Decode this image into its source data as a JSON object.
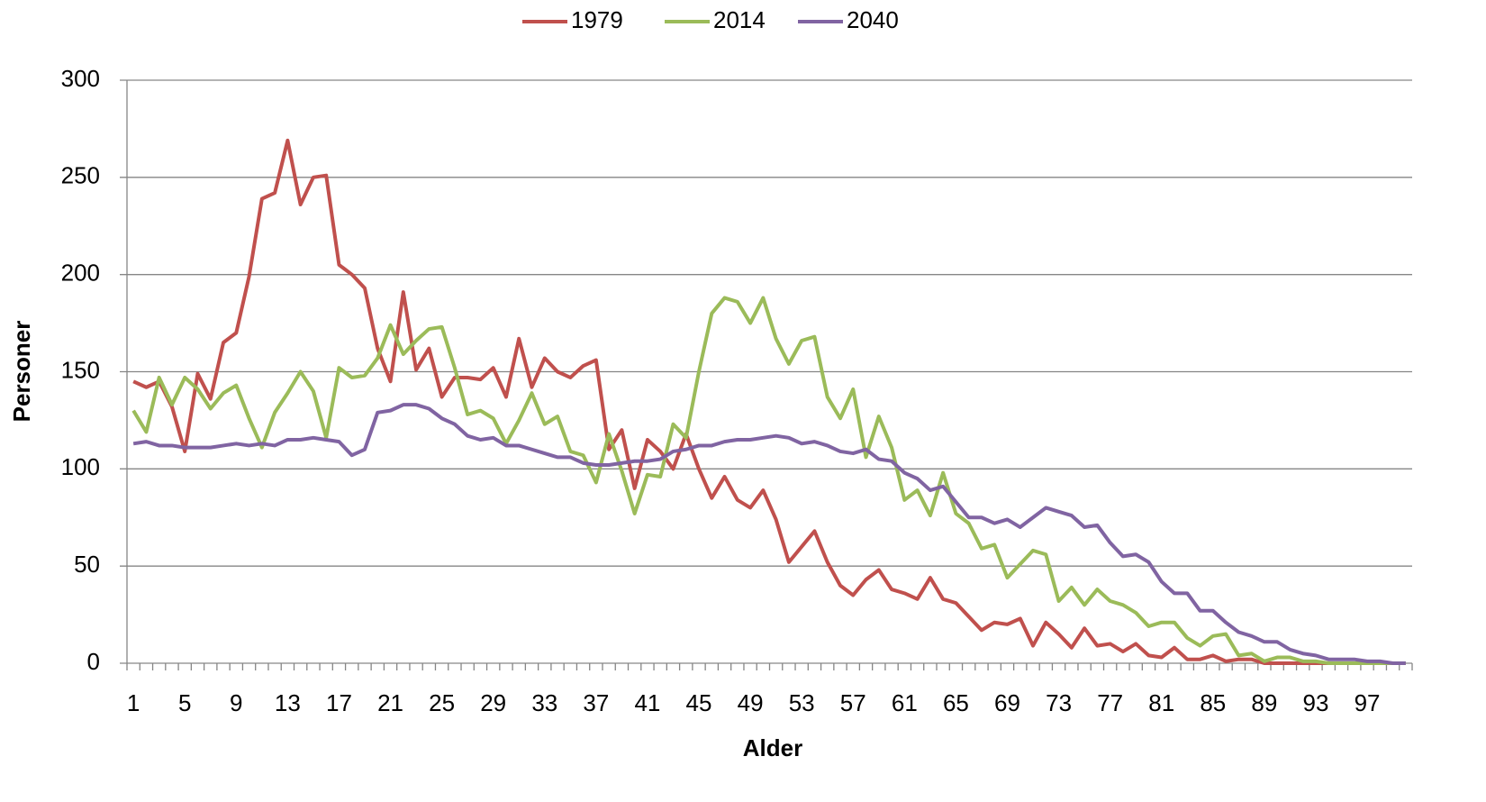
{
  "chart_data": {
    "type": "line",
    "x_label": "Alder",
    "y_label": "Personer",
    "categories": [
      1,
      null,
      null,
      null,
      5,
      null,
      null,
      null,
      9,
      null,
      null,
      null,
      13,
      null,
      null,
      null,
      17,
      null,
      null,
      null,
      21,
      null,
      null,
      null,
      25,
      null,
      null,
      null,
      29,
      null,
      null,
      null,
      33,
      null,
      null,
      null,
      37,
      null,
      null,
      null,
      41,
      null,
      null,
      null,
      45,
      null,
      null,
      null,
      49,
      null,
      null,
      null,
      53,
      null,
      null,
      null,
      57,
      null,
      null,
      null,
      61,
      null,
      null,
      null,
      65,
      null,
      null,
      null,
      69,
      null,
      null,
      null,
      73,
      null,
      null,
      null,
      77,
      null,
      null,
      null,
      81,
      null,
      null,
      null,
      85,
      null,
      null,
      null,
      89,
      null,
      null,
      null,
      93,
      null,
      null,
      null,
      97,
      null,
      null,
      null
    ],
    "series": [
      {
        "name": "1979",
        "color": "#c0504d",
        "values": [
          145,
          142,
          145,
          132,
          109,
          149,
          136,
          165,
          170,
          199,
          239,
          242,
          269,
          236,
          250,
          251,
          205,
          200,
          193,
          162,
          145,
          191,
          151,
          162,
          137,
          147,
          147,
          146,
          152,
          137,
          167,
          142,
          157,
          150,
          147,
          153,
          156,
          110,
          120,
          90,
          115,
          109,
          100,
          118,
          100,
          85,
          96,
          84,
          80,
          89,
          74,
          52,
          60,
          68,
          52,
          40,
          35,
          43,
          48,
          38,
          36,
          33,
          44,
          33,
          31,
          24,
          17,
          21,
          20,
          23,
          9,
          21,
          15,
          8,
          18,
          9,
          10,
          6,
          10,
          4,
          3,
          8,
          2,
          2,
          4,
          1,
          2,
          2,
          0,
          0,
          0,
          0,
          0,
          0,
          0,
          0,
          0,
          0,
          0,
          0
        ]
      },
      {
        "name": "2014",
        "color": "#9bbb59",
        "values": [
          130,
          119,
          147,
          133,
          147,
          141,
          131,
          139,
          143,
          126,
          111,
          129,
          139,
          150,
          140,
          116,
          152,
          147,
          148,
          157,
          174,
          159,
          166,
          172,
          173,
          152,
          128,
          130,
          126,
          113,
          125,
          139,
          123,
          127,
          109,
          107,
          93,
          118,
          99,
          77,
          97,
          96,
          123,
          116,
          150,
          180,
          188,
          186,
          175,
          188,
          167,
          154,
          166,
          168,
          137,
          126,
          141,
          106,
          127,
          111,
          84,
          89,
          76,
          98,
          77,
          72,
          59,
          61,
          44,
          51,
          58,
          56,
          32,
          39,
          30,
          38,
          32,
          30,
          26,
          19,
          21,
          21,
          13,
          9,
          14,
          15,
          4,
          5,
          1,
          3,
          3,
          1,
          1,
          0,
          0,
          0,
          0,
          0,
          0,
          0
        ]
      },
      {
        "name": "2040",
        "color": "#8064a2",
        "values": [
          113,
          114,
          112,
          112,
          111,
          111,
          111,
          112,
          113,
          112,
          113,
          112,
          115,
          115,
          116,
          115,
          114,
          107,
          110,
          129,
          130,
          133,
          133,
          131,
          126,
          123,
          117,
          115,
          116,
          112,
          112,
          110,
          108,
          106,
          106,
          103,
          102,
          102,
          103,
          104,
          104,
          105,
          109,
          110,
          112,
          112,
          114,
          115,
          115,
          116,
          117,
          116,
          113,
          114,
          112,
          109,
          108,
          110,
          105,
          104,
          98,
          95,
          89,
          91,
          83,
          75,
          75,
          72,
          74,
          70,
          75,
          80,
          78,
          76,
          70,
          71,
          62,
          55,
          56,
          52,
          42,
          36,
          36,
          27,
          27,
          21,
          16,
          14,
          11,
          11,
          7,
          5,
          4,
          2,
          2,
          2,
          1,
          1,
          0,
          0
        ]
      }
    ],
    "ylim": [
      0,
      300
    ],
    "yticks": [
      0,
      50,
      100,
      150,
      200,
      250,
      300
    ],
    "grid": true,
    "legend": "top"
  }
}
